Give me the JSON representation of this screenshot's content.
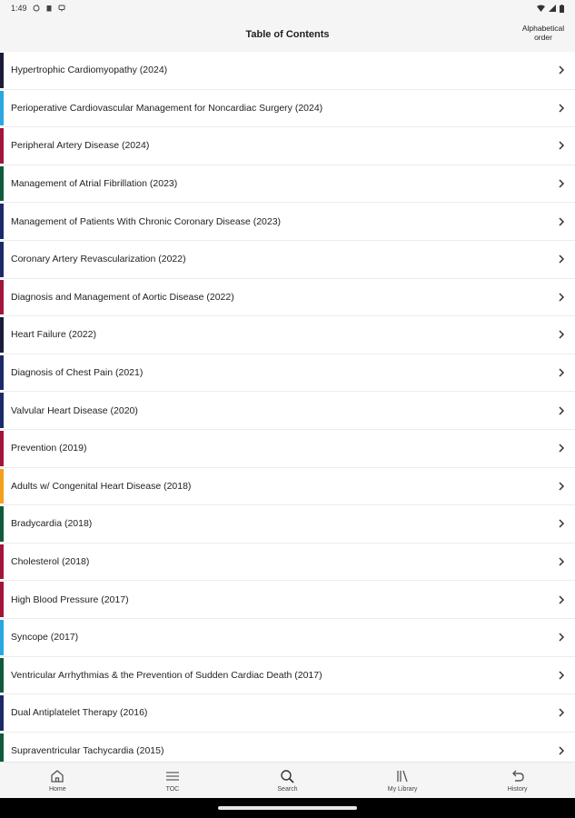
{
  "status_bar": {
    "time": "1:49",
    "left_icons": [
      "sync-icon",
      "clipboard-icon",
      "notification-icon"
    ],
    "right_icons": [
      "wifi-icon",
      "signal-icon",
      "battery-icon"
    ]
  },
  "header": {
    "title": "Table of Contents",
    "sort_label": "Alphabetical order"
  },
  "guidelines": [
    {
      "label": "Hypertrophic Cardiomyopathy (2024)",
      "color": "#1b1b3a"
    },
    {
      "label": "Perioperative Cardiovascular Management for Noncardiac Surgery (2024)",
      "color": "#29a8e0"
    },
    {
      "label": "Peripheral Artery Disease (2024)",
      "color": "#a3153a"
    },
    {
      "label": "Management of Atrial Fibrillation (2023)",
      "color": "#0f5a3a"
    },
    {
      "label": "Management of Patients With Chronic Coronary Disease  (2023)",
      "color": "#1c2a6a"
    },
    {
      "label": "Coronary Artery Revascularization (2022)",
      "color": "#1c2a6a"
    },
    {
      "label": "Diagnosis and Management of Aortic Disease (2022)",
      "color": "#a3153a"
    },
    {
      "label": "Heart Failure (2022)",
      "color": "#1b1b3a"
    },
    {
      "label": "Diagnosis of Chest Pain (2021)",
      "color": "#1c2a6a"
    },
    {
      "label": "Valvular Heart Disease (2020)",
      "color": "#1c2a6a"
    },
    {
      "label": "Prevention (2019)",
      "color": "#a3153a"
    },
    {
      "label": "Adults w/ Congenital Heart Disease (2018)",
      "color": "#f3a11a"
    },
    {
      "label": "Bradycardia (2018)",
      "color": "#0f5a3a"
    },
    {
      "label": "Cholesterol (2018)",
      "color": "#a3153a"
    },
    {
      "label": "High Blood Pressure (2017)",
      "color": "#a3153a"
    },
    {
      "label": "Syncope (2017)",
      "color": "#29a8e0"
    },
    {
      "label": "Ventricular Arrhythmias & the Prevention of Sudden Cardiac Death (2017)",
      "color": "#0f5a3a"
    },
    {
      "label": "Dual Antiplatelet Therapy (2016)",
      "color": "#1c2a6a"
    },
    {
      "label": "Supraventricular Tachycardia (2015)",
      "color": "#0f5a3a"
    }
  ],
  "bottom_nav": [
    {
      "label": "Home",
      "icon": "home-icon"
    },
    {
      "label": "TOC",
      "icon": "toc-icon"
    },
    {
      "label": "Search",
      "icon": "search-icon"
    },
    {
      "label": "My Library",
      "icon": "library-icon"
    },
    {
      "label": "History",
      "icon": "history-icon"
    }
  ]
}
